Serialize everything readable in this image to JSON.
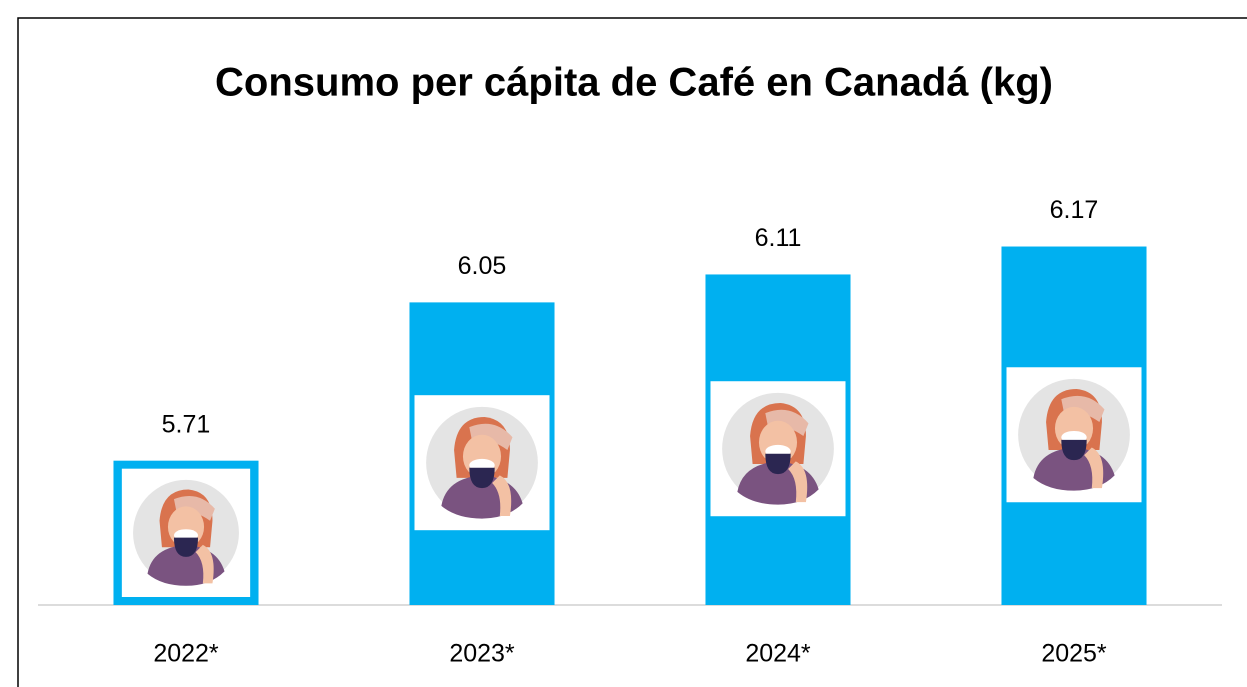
{
  "chart_data": {
    "type": "bar",
    "title": "Consumo per cápita de Café en Canadá (kg)",
    "categories": [
      "2022*",
      "2023*",
      "2024*",
      "2025*"
    ],
    "values": [
      5.71,
      6.05,
      6.11,
      6.17
    ],
    "color": "#00b0f0",
    "ylim": [
      5.4,
      6.3
    ]
  }
}
